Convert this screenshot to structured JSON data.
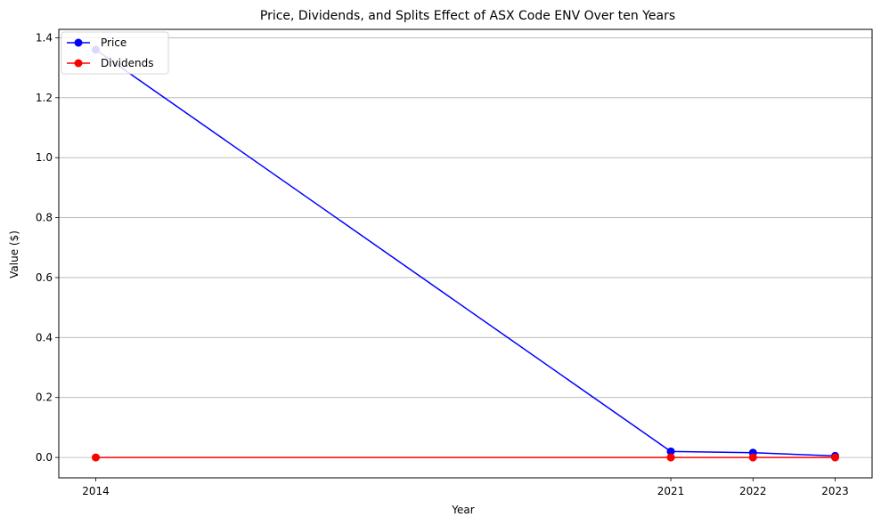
{
  "chart_data": {
    "type": "line",
    "title": "Price, Dividends, and Splits Effect of ASX Code ENV Over ten Years",
    "xlabel": "Year",
    "ylabel": "Value ($)",
    "x": [
      2014,
      2021,
      2022,
      2023
    ],
    "x_tick_labels": [
      "2014",
      "2021",
      "2022",
      "2023"
    ],
    "xlim": [
      2013.55,
      2023.45
    ],
    "ylim": [
      -0.068,
      1.428
    ],
    "y_ticks": [
      0.0,
      0.2,
      0.4,
      0.6,
      0.8,
      1.0,
      1.2,
      1.4
    ],
    "y_tick_labels": [
      "0.0",
      "0.2",
      "0.4",
      "0.6",
      "0.8",
      "1.0",
      "1.2",
      "1.4"
    ],
    "grid": "y-axis",
    "legend_position": "upper-left",
    "series": [
      {
        "name": "Price",
        "color": "#0000ff",
        "values": [
          1.36,
          0.02,
          0.016,
          0.005
        ]
      },
      {
        "name": "Dividends",
        "color": "#ff0000",
        "values": [
          0.0,
          0.0,
          0.0,
          0.0
        ]
      }
    ]
  }
}
